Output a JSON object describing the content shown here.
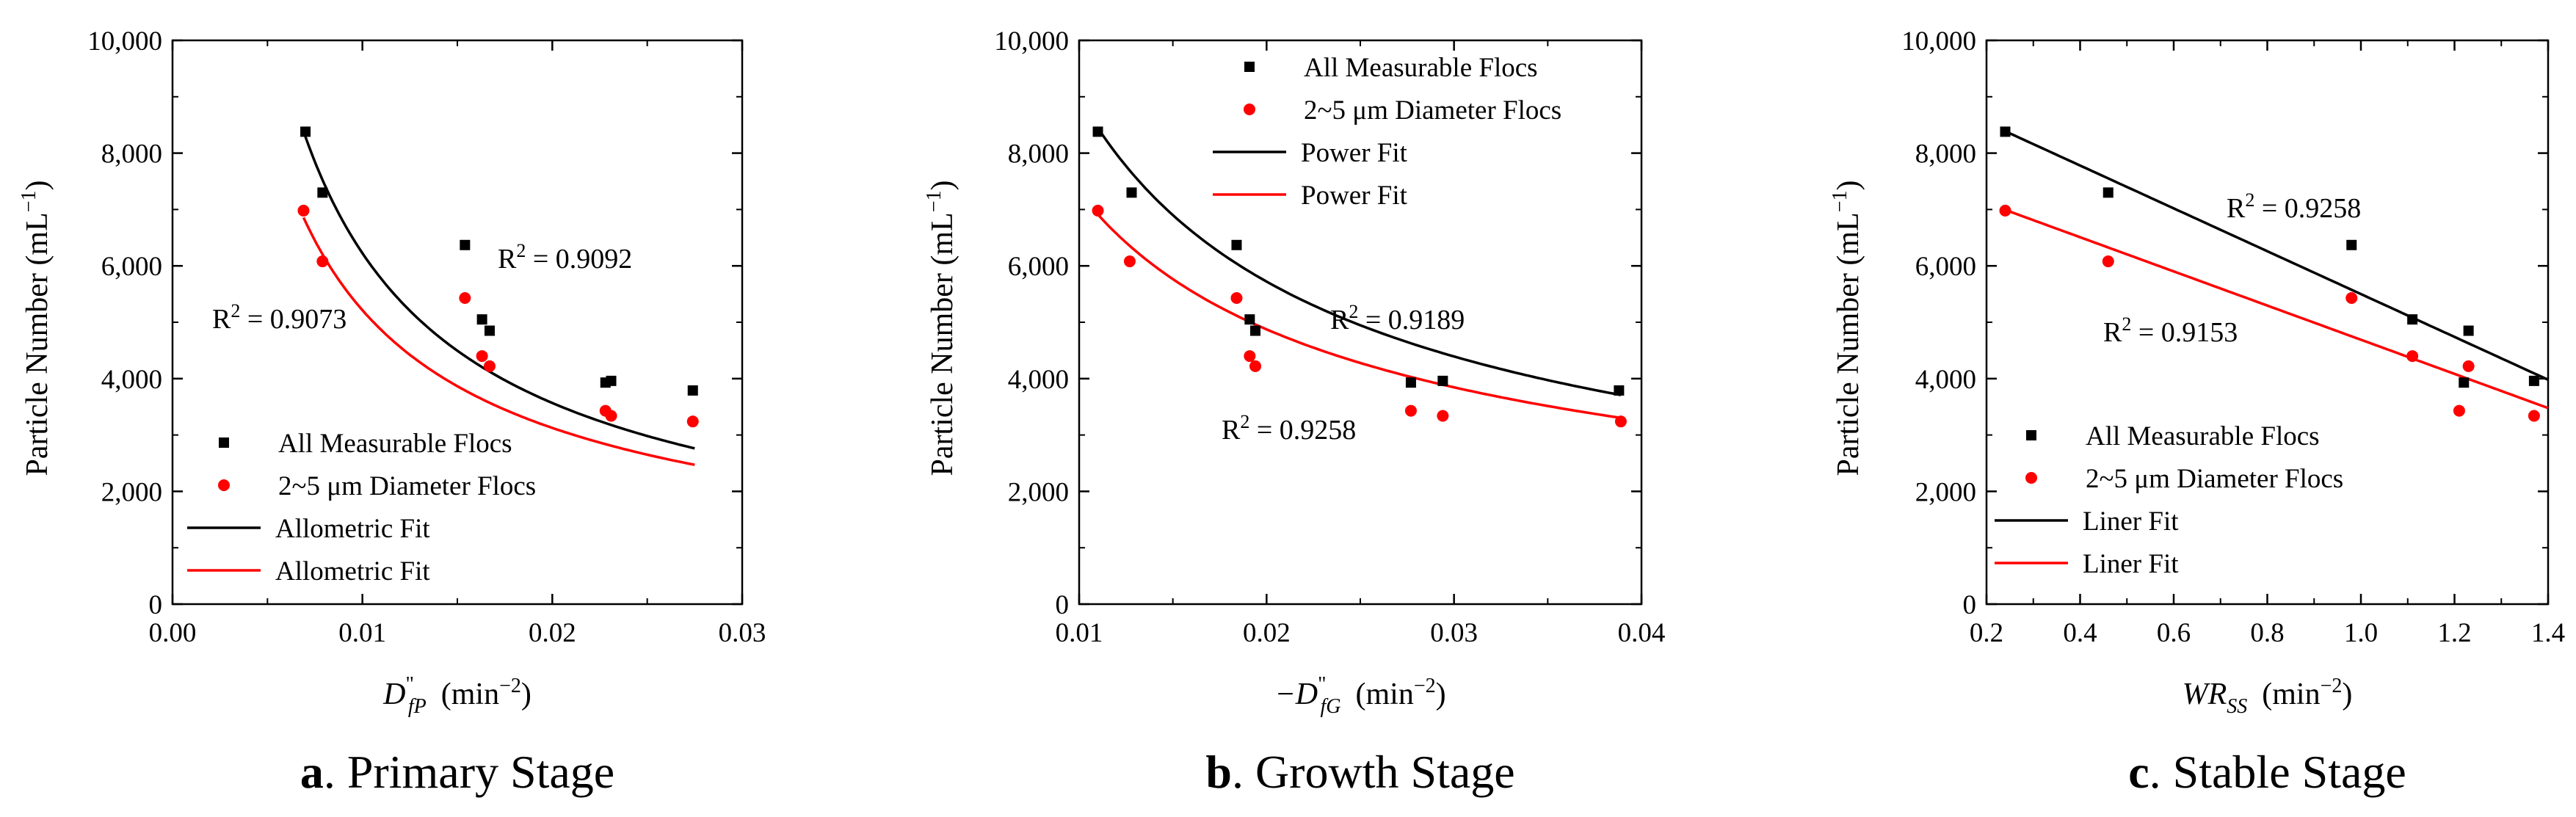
{
  "figure": {
    "colors": {
      "series_all": "#000000",
      "series_small": "#ff0000",
      "fit_all": "#000000",
      "fit_small": "#ff0000"
    }
  },
  "chart_data": [
    {
      "type": "scatter",
      "caption_letter": "a",
      "caption_text": ". Primary Stage",
      "ylabel": "Particle Number (mL",
      "ylabel_sup": "−1",
      "ylabel_close": ")",
      "xlabel_main": "D",
      "xlabel_sup": "\"",
      "xlabel_sub": "fP",
      "xlabel_units": "(min",
      "xlabel_units_sup": "−2",
      "xlabel_close": ")",
      "xlim": [
        0.0,
        0.03
      ],
      "ylim": [
        0,
        10000
      ],
      "xticks": [
        0.0,
        0.01,
        0.02,
        0.03
      ],
      "xtick_labels": [
        "0.00",
        "0.01",
        "0.02",
        "0.03"
      ],
      "yticks": [
        0,
        2000,
        4000,
        6000,
        8000,
        10000
      ],
      "ytick_labels": [
        "0",
        "2,000",
        "4,000",
        "6,000",
        "8,000",
        "10,000"
      ],
      "series": [
        {
          "name": "All Measurable Flocs",
          "marker": "square",
          "color": "#000000",
          "x": [
            0.007,
            0.0079,
            0.0154,
            0.0163,
            0.0167,
            0.0228,
            0.0231,
            0.0274
          ],
          "y": [
            8380,
            7300,
            6370,
            5050,
            4850,
            3930,
            3960,
            3790
          ]
        },
        {
          "name": "2~5 μm Diameter Flocs",
          "marker": "circle",
          "color": "#ff0000",
          "x": [
            0.0069,
            0.0079,
            0.0154,
            0.0163,
            0.0167,
            0.0228,
            0.0231,
            0.0274
          ],
          "y": [
            6980,
            6080,
            5430,
            4400,
            4220,
            3430,
            3340,
            3240
          ]
        }
      ],
      "fits": [
        {
          "name": "Allometric Fit",
          "color": "#000000",
          "form": "power",
          "a": 154.1,
          "b": -0.8032,
          "x_range": [
            0.0069,
            0.0275
          ]
        },
        {
          "name": "Allometric Fit",
          "color": "#ff0000",
          "form": "power",
          "a": 174.1,
          "b": -0.7382,
          "x_range": [
            0.0069,
            0.0275
          ]
        }
      ],
      "annotations": [
        {
          "base": "R",
          "sup": "2",
          "rest": " = 0.9092"
        },
        {
          "base": "R",
          "sup": "2",
          "rest": " = 0.9073"
        }
      ]
    },
    {
      "type": "scatter",
      "caption_letter": "b",
      "caption_text": ". Growth Stage",
      "ylabel": "Particle Number (mL",
      "ylabel_sup": "−1",
      "ylabel_close": ")",
      "xlabel_main": "−D",
      "xlabel_sup": "\"",
      "xlabel_sub": "fG",
      "xlabel_units": "(min",
      "xlabel_units_sup": "−2",
      "xlabel_close": ")",
      "xlim": [
        0.01,
        0.04
      ],
      "ylim": [
        0,
        10000
      ],
      "xticks": [
        0.01,
        0.02,
        0.03,
        0.04
      ],
      "xtick_labels": [
        "0.01",
        "0.02",
        "0.03",
        "0.04"
      ],
      "yticks": [
        0,
        2000,
        4000,
        6000,
        8000,
        10000
      ],
      "ytick_labels": [
        "0",
        "2,000",
        "4,000",
        "6,000",
        "8,000",
        "10,000"
      ],
      "series": [
        {
          "name": "All Measurable Flocs",
          "marker": "square",
          "color": "#000000",
          "x": [
            0.011,
            0.0128,
            0.0184,
            0.0191,
            0.0194,
            0.0277,
            0.0294,
            0.0388
          ],
          "y": [
            8380,
            7300,
            6370,
            5050,
            4850,
            3930,
            3960,
            3790
          ]
        },
        {
          "name": "2~5 μm Diameter Flocs",
          "marker": "circle",
          "color": "#ff0000",
          "x": [
            0.011,
            0.0127,
            0.0184,
            0.0191,
            0.0194,
            0.0277,
            0.0294,
            0.0389
          ],
          "y": [
            6980,
            6080,
            5430,
            4400,
            4220,
            3430,
            3340,
            3240
          ]
        }
      ],
      "fits": [
        {
          "name": "Power Fit",
          "color": "#000000",
          "form": "power",
          "a": 447.3,
          "b": -0.6515,
          "x_range": [
            0.011,
            0.0389
          ]
        },
        {
          "name": "Power Fit",
          "color": "#ff0000",
          "form": "power",
          "a": 495.6,
          "b": -0.5843,
          "x_range": [
            0.011,
            0.0389
          ]
        }
      ],
      "annotations": [
        {
          "base": "R",
          "sup": "2",
          "rest": " = 0.9189"
        },
        {
          "base": "R",
          "sup": "2",
          "rest": " = 0.9258"
        }
      ]
    },
    {
      "type": "scatter",
      "caption_letter": "c",
      "caption_text": ". Stable Stage",
      "ylabel": "Particle Number (mL",
      "ylabel_sup": "−1",
      "ylabel_close": ")",
      "xlabel_main": "WR",
      "xlabel_sup": "",
      "xlabel_sub": "SS",
      "xlabel_units": "(min",
      "xlabel_units_sup": "−2",
      "xlabel_close": ")",
      "xlim": [
        0.2,
        1.4
      ],
      "ylim": [
        0,
        10000
      ],
      "xticks": [
        0.2,
        0.4,
        0.6,
        0.8,
        1.0,
        1.2,
        1.4
      ],
      "xtick_labels": [
        "0.2",
        "0.4",
        "0.6",
        "0.8",
        "1.0",
        "1.2",
        "1.4"
      ],
      "yticks": [
        0,
        2000,
        4000,
        6000,
        8000,
        10000
      ],
      "ytick_labels": [
        "0",
        "2,000",
        "4,000",
        "6,000",
        "8,000",
        "10,000"
      ],
      "series": [
        {
          "name": "All Measurable Flocs",
          "marker": "square",
          "color": "#000000",
          "x": [
            0.24,
            0.46,
            0.98,
            1.11,
            1.22,
            1.23,
            1.37
          ],
          "y": [
            8380,
            7300,
            6370,
            5050,
            3930,
            4850,
            3960
          ]
        },
        {
          "name": "2~5 μm Diameter Flocs",
          "marker": "circle",
          "color": "#ff0000",
          "x": [
            0.24,
            0.46,
            0.98,
            1.11,
            1.21,
            1.23,
            1.37
          ],
          "y": [
            6980,
            6080,
            5430,
            4400,
            3430,
            4220,
            3340
          ]
        }
      ],
      "fits": [
        {
          "name": "Liner Fit",
          "color": "#000000",
          "form": "linear",
          "slope": -3800,
          "intercept": 9300,
          "x_range": [
            0.23,
            1.4
          ]
        },
        {
          "name": "Liner Fit",
          "color": "#ff0000",
          "form": "linear",
          "slope": -3030,
          "intercept": 7720,
          "x_range": [
            0.23,
            1.4
          ]
        }
      ],
      "annotations": [
        {
          "base": "R",
          "sup": "2",
          "rest": " = 0.9258"
        },
        {
          "base": "R",
          "sup": "2",
          "rest": " = 0.9153"
        }
      ]
    }
  ]
}
